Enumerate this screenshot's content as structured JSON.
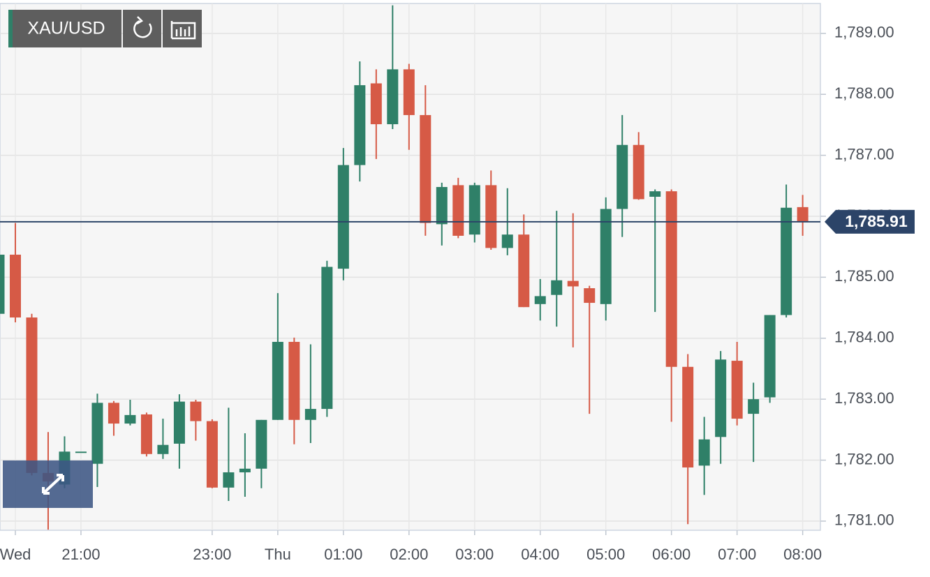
{
  "chart_data": {
    "type": "candlestick",
    "symbol": "XAU/USD",
    "x": [
      19.75,
      20,
      20.25,
      20.5,
      20.75,
      21,
      21.25,
      21.5,
      21.75,
      22,
      22.25,
      22.5,
      22.75,
      23,
      23.25,
      23.5,
      23.75,
      24,
      24.25,
      24.5,
      24.75,
      25,
      25.25,
      25.5,
      25.75,
      26,
      26.25,
      26.5,
      26.75,
      27,
      27.25,
      27.5,
      27.75,
      28,
      28.25,
      28.5,
      28.75,
      29,
      29.25,
      29.5,
      29.75,
      30,
      30.25,
      30.5,
      30.75,
      31,
      31.25,
      31.5,
      31.75,
      32
    ],
    "open": [
      1784.4,
      1785.37,
      1784.34,
      1781.79,
      1781.6,
      1782.14,
      1781.94,
      1782.94,
      1782.6,
      1782.75,
      1782.1,
      1782.27,
      1782.96,
      1782.64,
      1781.55,
      1781.8,
      1781.86,
      1782.66,
      1783.94,
      1782.66,
      1782.84,
      1785.14,
      1786.84,
      1788.18,
      1787.51,
      1788.41,
      1787.66,
      1785.87,
      1786.51,
      1785.7,
      1786.51,
      1785.48,
      1785.7,
      1784.56,
      1784.71,
      1784.94,
      1784.82,
      1784.56,
      1786.12,
      1787.17,
      1786.32,
      1786.41,
      1783.53,
      1781.91,
      1782.38,
      1783.63,
      1782.76,
      1783.03,
      1784.38,
      1786.15
    ],
    "high": [
      1785.54,
      1785.89,
      1784.4,
      1782.46,
      1782.39,
      1782.14,
      1783.09,
      1782.97,
      1782.99,
      1782.78,
      1782.68,
      1783.08,
      1782.99,
      1782.67,
      1782.86,
      1782.44,
      1782.66,
      1784.74,
      1784.01,
      1783.9,
      1785.27,
      1787.12,
      1788.54,
      1788.41,
      1789.46,
      1788.5,
      1788.15,
      1786.55,
      1786.63,
      1786.55,
      1786.75,
      1786.46,
      1786.03,
      1784.97,
      1786.09,
      1786.05,
      1784.86,
      1786.31,
      1787.66,
      1787.38,
      1786.44,
      1786.44,
      1783.74,
      1782.71,
      1783.79,
      1783.94,
      1783.27,
      1784.38,
      1786.52,
      1786.35
    ],
    "low": [
      1784.4,
      1784.26,
      1781.75,
      1780.86,
      1781.54,
      1782.14,
      1781.56,
      1782.4,
      1782.57,
      1782.06,
      1782.02,
      1781.86,
      1782.32,
      1781.54,
      1781.33,
      1781.4,
      1781.54,
      1782.66,
      1782.26,
      1782.28,
      1782.71,
      1784.95,
      1786.57,
      1786.94,
      1787.43,
      1787.09,
      1785.68,
      1785.52,
      1785.64,
      1785.57,
      1785.45,
      1785.36,
      1784.51,
      1784.29,
      1784.19,
      1783.85,
      1782.76,
      1784.29,
      1785.66,
      1786.27,
      1784.43,
      1782.63,
      1780.95,
      1781.43,
      1781.94,
      1782.57,
      1781.97,
      1782.94,
      1784.34,
      1785.68
    ],
    "close": [
      1785.37,
      1784.34,
      1781.79,
      1781.65,
      1782.14,
      1782.14,
      1782.94,
      1782.6,
      1782.74,
      1782.1,
      1782.25,
      1782.96,
      1782.64,
      1781.55,
      1781.8,
      1781.86,
      1782.66,
      1783.94,
      1782.66,
      1782.84,
      1785.17,
      1786.84,
      1788.15,
      1787.51,
      1788.41,
      1787.66,
      1785.89,
      1786.48,
      1785.68,
      1786.51,
      1785.48,
      1785.7,
      1784.51,
      1784.69,
      1784.95,
      1784.85,
      1784.58,
      1786.12,
      1787.17,
      1786.28,
      1786.41,
      1783.53,
      1781.88,
      1782.34,
      1783.65,
      1782.68,
      1783.0,
      1784.38,
      1786.14,
      1785.91
    ],
    "up_color": "#2f8068",
    "down_color": "#d65a46",
    "last_price": {
      "value": 1785.91,
      "label": "1,785.91"
    },
    "last_price_color": "#2c4468",
    "xlim": [
      19.766,
      32.27
    ],
    "xticks": [
      {
        "value": 20,
        "label": "Wed"
      },
      {
        "value": 21,
        "label": "21:00"
      },
      {
        "value": 23,
        "label": "23:00"
      },
      {
        "value": 24,
        "label": "Thu"
      },
      {
        "value": 25,
        "label": "01:00"
      },
      {
        "value": 26,
        "label": "02:00"
      },
      {
        "value": 27,
        "label": "03:00"
      },
      {
        "value": 28,
        "label": "04:00"
      },
      {
        "value": 29,
        "label": "05:00"
      },
      {
        "value": 30,
        "label": "06:00"
      },
      {
        "value": 31,
        "label": "07:00"
      },
      {
        "value": 32,
        "label": "08:00"
      }
    ],
    "ylim": [
      1780.85,
      1789.49
    ],
    "yticks": [
      {
        "value": 1781,
        "label": "1,781.00"
      },
      {
        "value": 1782,
        "label": "1,782.00"
      },
      {
        "value": 1783,
        "label": "1,783.00"
      },
      {
        "value": 1784,
        "label": "1,784.00"
      },
      {
        "value": 1785,
        "label": "1,785.00"
      },
      {
        "value": 1786,
        "label": "1,786.00"
      },
      {
        "value": 1787,
        "label": "1,787.00"
      },
      {
        "value": 1788,
        "label": "1,788.00"
      },
      {
        "value": 1789,
        "label": "1,789.00"
      }
    ],
    "grid": true
  }
}
